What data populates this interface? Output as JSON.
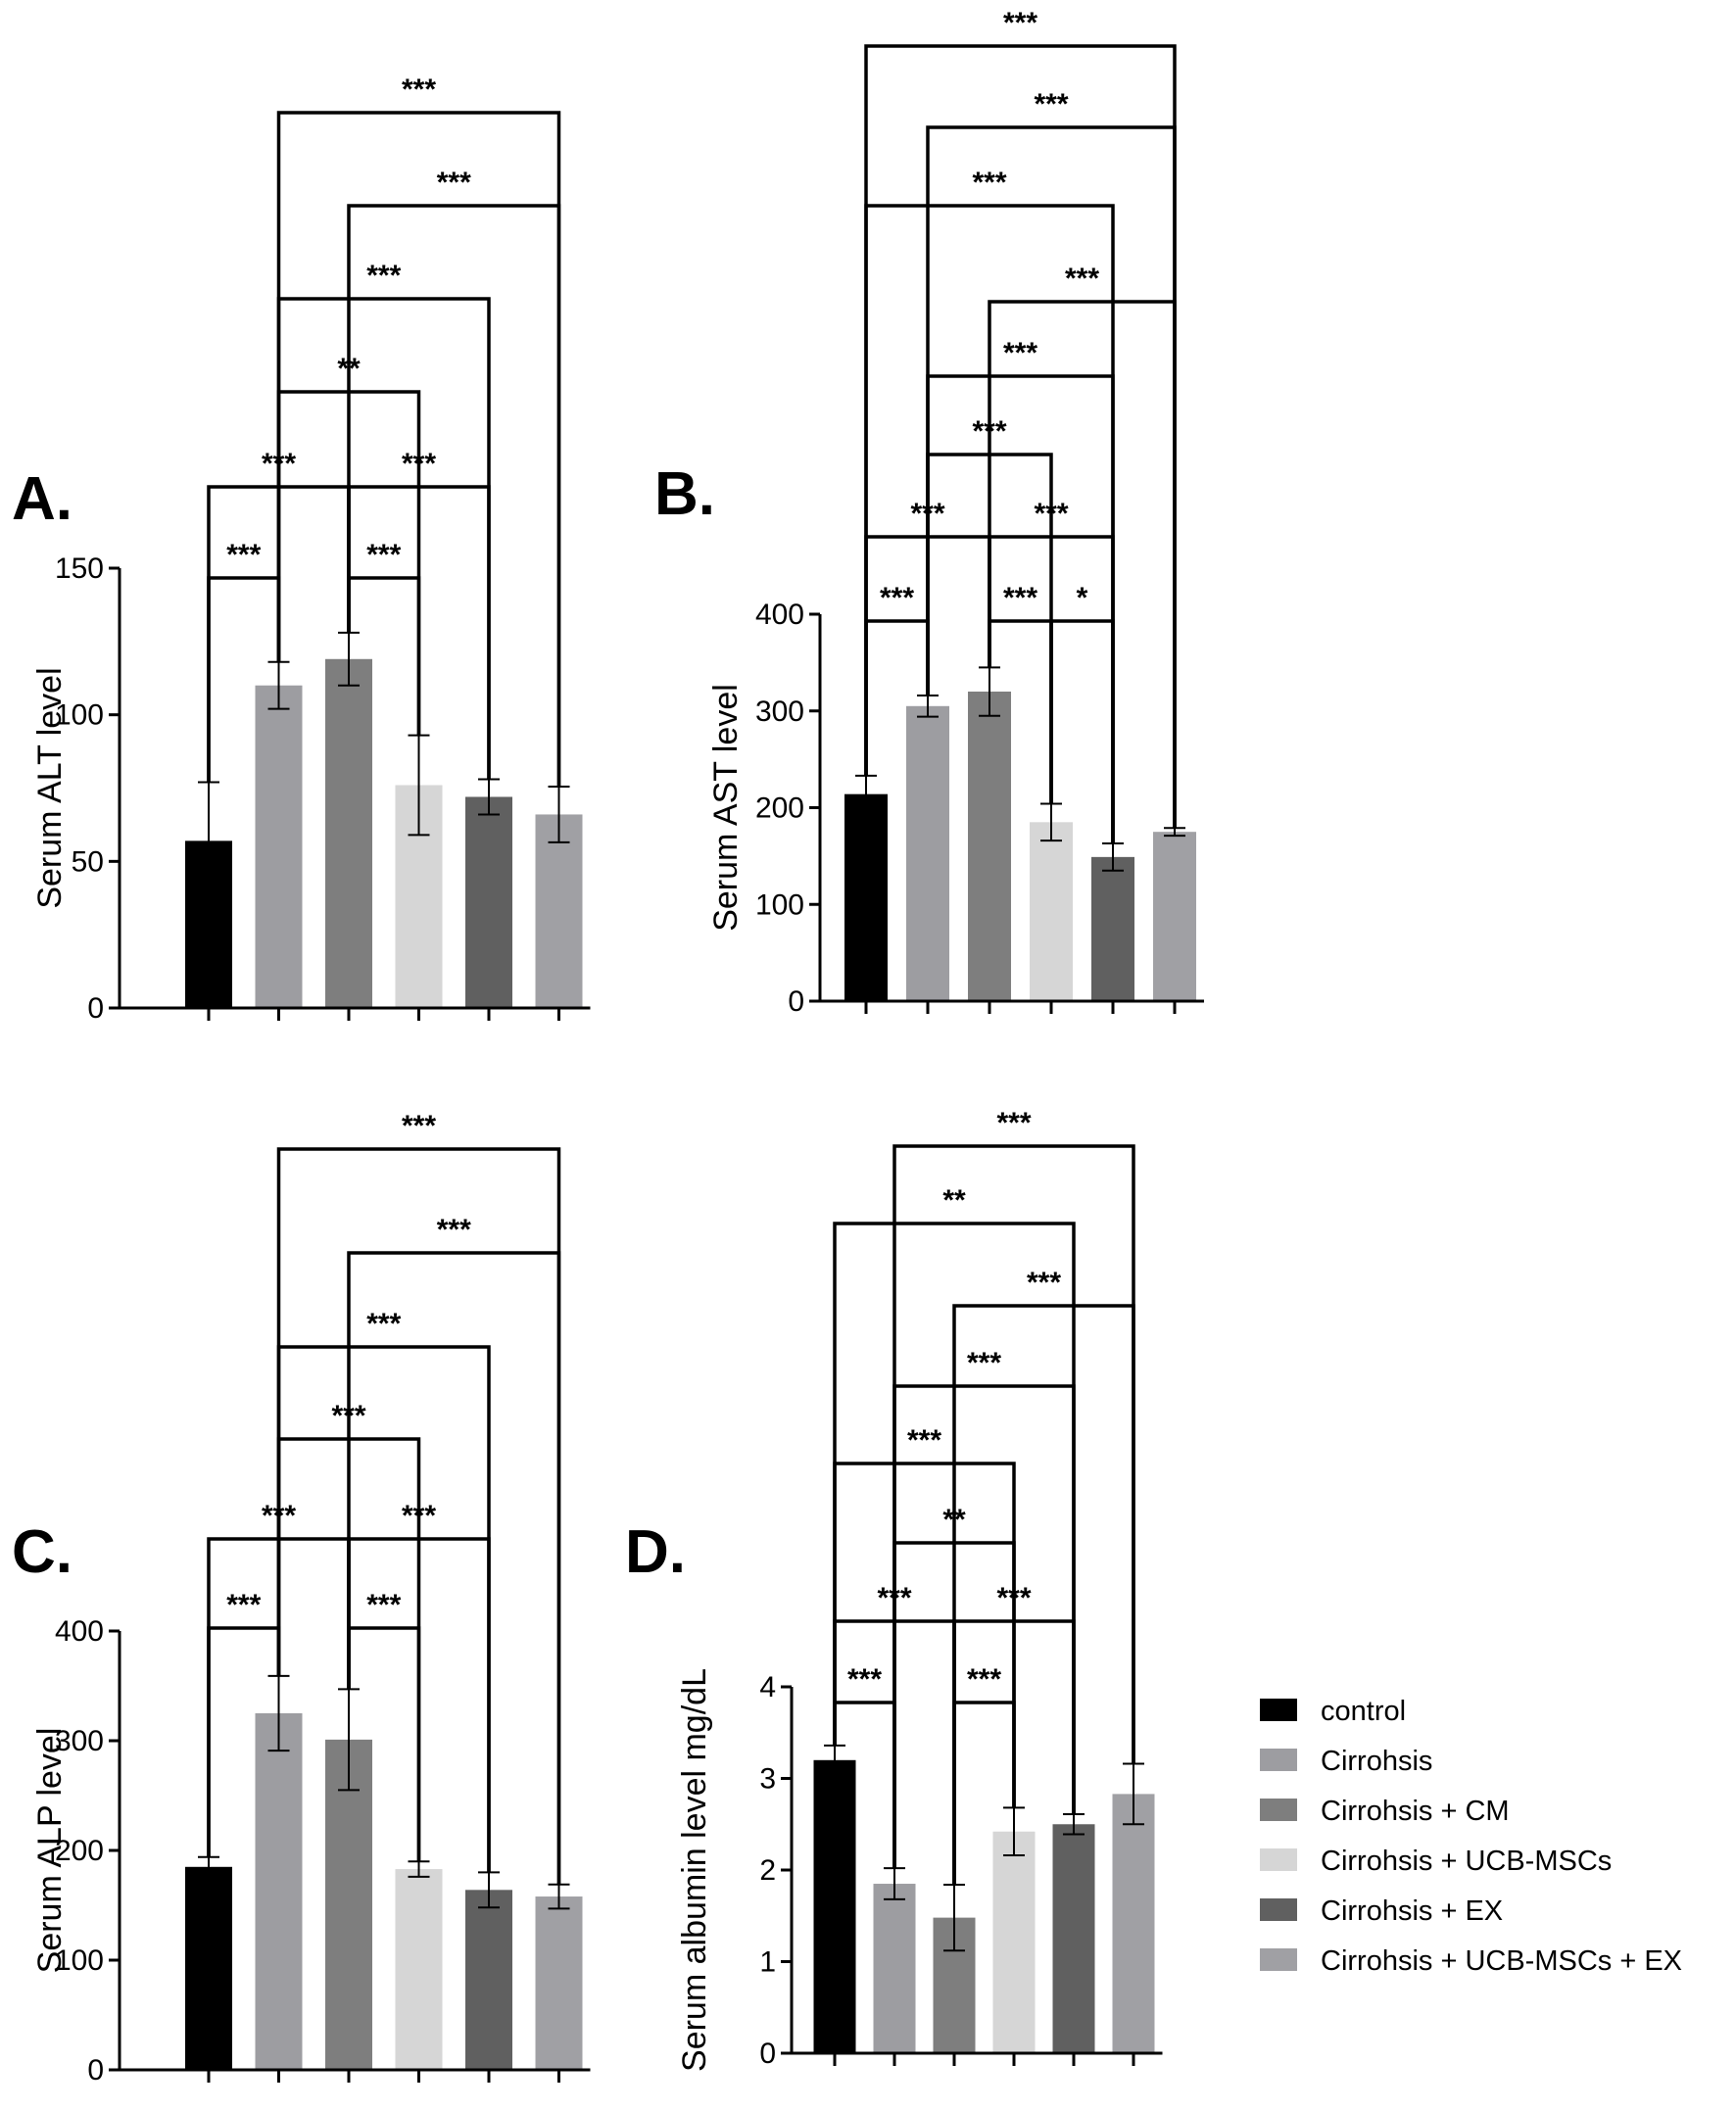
{
  "colors": {
    "control": "#000000",
    "Cirrohsis": "#9d9da1",
    "Cirrohsis + CM": "#7e7e7e",
    "Cirrohsis + UCB-MSCs": "#d6d6d6",
    "Cirrohsis + EX": "#606060",
    "Cirrohsis + UCB-MSCs + EX": "#a0a0a4"
  },
  "legend": {
    "items": [
      "control",
      "Cirrohsis",
      "Cirrohsis + CM",
      "Cirrohsis + UCB-MSCs",
      "Cirrohsis + EX",
      "Cirrohsis + UCB-MSCs + EX"
    ]
  },
  "chart_data": [
    {
      "panel": "A.",
      "type": "bar",
      "ylabel": "Serum ALT level",
      "ylim": [
        0,
        150
      ],
      "yticks": [
        0,
        50,
        100,
        150
      ],
      "categories": [
        "control",
        "Cirrohsis",
        "Cirrohsis + CM",
        "Cirrohsis + UCB-MSCs",
        "Cirrohsis + EX",
        "Cirrohsis + UCB-MSCs + EX"
      ],
      "values": [
        57,
        110,
        119,
        76,
        72,
        66
      ],
      "errors": [
        20,
        8,
        9,
        17,
        6,
        9.5
      ],
      "significance": [
        {
          "from": 0,
          "to": 1,
          "label": "***"
        },
        {
          "from": 2,
          "to": 3,
          "label": "***"
        },
        {
          "from": 0,
          "to": 2,
          "label": "***"
        },
        {
          "from": 2,
          "to": 4,
          "label": "***"
        },
        {
          "from": 1,
          "to": 3,
          "label": "**"
        },
        {
          "from": 1,
          "to": 4,
          "label": "***"
        },
        {
          "from": 2,
          "to": 5,
          "label": "***"
        },
        {
          "from": 1,
          "to": 5,
          "label": "***"
        }
      ]
    },
    {
      "panel": "B.",
      "type": "bar",
      "ylabel": "Serum AST level",
      "ylim": [
        0,
        400
      ],
      "yticks": [
        0,
        100,
        200,
        300,
        400
      ],
      "categories": [
        "control",
        "Cirrohsis",
        "Cirrohsis + CM",
        "Cirrohsis + UCB-MSCs",
        "Cirrohsis + EX",
        "Cirrohsis + UCB-MSCs + EX"
      ],
      "values": [
        214,
        305,
        320,
        185,
        149,
        175
      ],
      "errors": [
        19,
        11,
        25,
        19,
        14,
        4
      ],
      "significance": [
        {
          "from": 0,
          "to": 1,
          "label": "***"
        },
        {
          "from": 2,
          "to": 3,
          "label": "***"
        },
        {
          "from": 3,
          "to": 4,
          "label": "*"
        },
        {
          "from": 0,
          "to": 2,
          "label": "***"
        },
        {
          "from": 2,
          "to": 4,
          "label": "***"
        },
        {
          "from": 1,
          "to": 3,
          "label": "***"
        },
        {
          "from": 1,
          "to": 4,
          "label": "***"
        },
        {
          "from": 2,
          "to": 5,
          "label": "***"
        },
        {
          "from": 0,
          "to": 4,
          "label": "***"
        },
        {
          "from": 1,
          "to": 5,
          "label": "***"
        },
        {
          "from": 0,
          "to": 5,
          "label": "***"
        }
      ]
    },
    {
      "panel": "C.",
      "type": "bar",
      "ylabel": "Serum ALP level",
      "ylim": [
        0,
        400
      ],
      "yticks": [
        0,
        100,
        200,
        300,
        400
      ],
      "categories": [
        "control",
        "Cirrohsis",
        "Cirrohsis + CM",
        "Cirrohsis + UCB-MSCs",
        "Cirrohsis + EX",
        "Cirrohsis + UCB-MSCs + EX"
      ],
      "values": [
        185,
        325,
        301,
        183,
        164,
        158
      ],
      "errors": [
        9,
        34,
        46,
        7,
        16,
        11
      ],
      "significance": [
        {
          "from": 0,
          "to": 1,
          "label": "***"
        },
        {
          "from": 2,
          "to": 3,
          "label": "***"
        },
        {
          "from": 0,
          "to": 2,
          "label": "***"
        },
        {
          "from": 2,
          "to": 4,
          "label": "***"
        },
        {
          "from": 1,
          "to": 3,
          "label": "***"
        },
        {
          "from": 1,
          "to": 4,
          "label": "***"
        },
        {
          "from": 2,
          "to": 5,
          "label": "***"
        },
        {
          "from": 1,
          "to": 5,
          "label": "***"
        }
      ]
    },
    {
      "panel": "D.",
      "type": "bar",
      "ylabel": "Serum albumin level mg/dL",
      "ylim": [
        0,
        4
      ],
      "yticks": [
        0,
        1,
        2,
        3,
        4
      ],
      "categories": [
        "control",
        "Cirrohsis",
        "Cirrohsis + CM",
        "Cirrohsis + UCB-MSCs",
        "Cirrohsis + EX",
        "Cirrohsis + UCB-MSCs + EX"
      ],
      "values": [
        3.2,
        1.85,
        1.48,
        2.42,
        2.5,
        2.83
      ],
      "errors": [
        0.16,
        0.17,
        0.36,
        0.26,
        0.11,
        0.33
      ],
      "significance": [
        {
          "from": 0,
          "to": 1,
          "label": "***"
        },
        {
          "from": 2,
          "to": 3,
          "label": "***"
        },
        {
          "from": 0,
          "to": 2,
          "label": "***"
        },
        {
          "from": 2,
          "to": 4,
          "label": "***"
        },
        {
          "from": 1,
          "to": 3,
          "label": "**"
        },
        {
          "from": 0,
          "to": 3,
          "label": "***"
        },
        {
          "from": 1,
          "to": 4,
          "label": "***"
        },
        {
          "from": 2,
          "to": 5,
          "label": "***"
        },
        {
          "from": 0,
          "to": 4,
          "label": "**"
        },
        {
          "from": 1,
          "to": 5,
          "label": "***"
        }
      ]
    }
  ]
}
